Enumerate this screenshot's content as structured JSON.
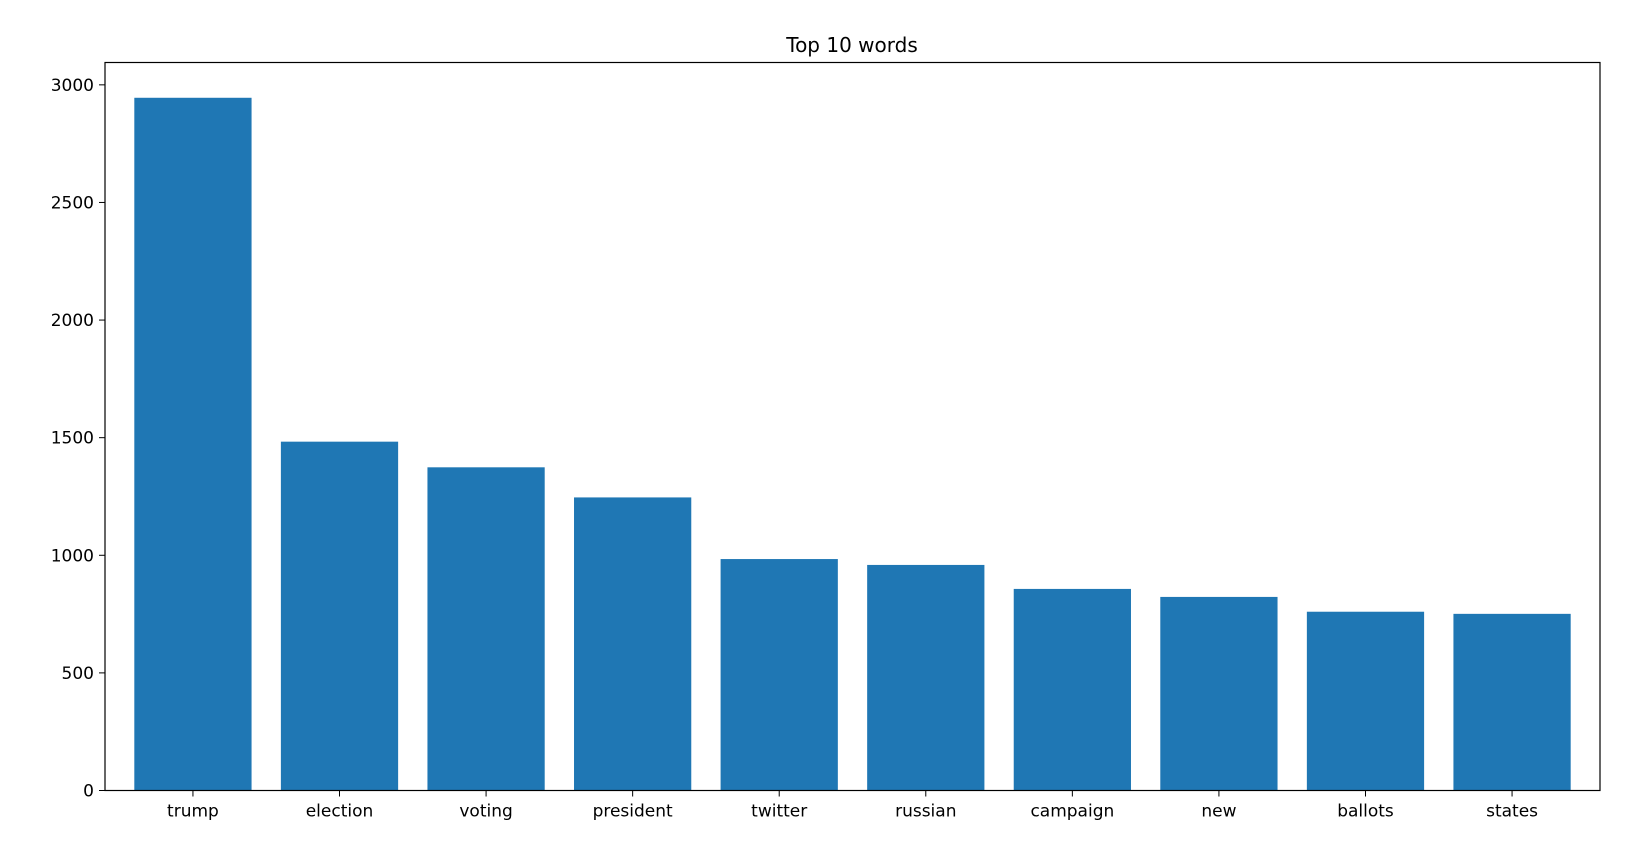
{
  "chart_data": {
    "type": "bar",
    "title": "Top 10 words",
    "xlabel": "",
    "ylabel": "",
    "categories": [
      "trump",
      "election",
      "voting",
      "president",
      "twitter",
      "russian",
      "campaign",
      "new",
      "ballots",
      "states"
    ],
    "values": [
      2945,
      1483,
      1374,
      1246,
      984,
      959,
      857,
      823,
      760,
      751
    ],
    "ylim": [
      0,
      3095
    ],
    "yticks": [
      0,
      500,
      1000,
      1500,
      2000,
      2500,
      3000
    ],
    "bar_color": "#1f77b4",
    "grid": false,
    "legend": "none"
  }
}
